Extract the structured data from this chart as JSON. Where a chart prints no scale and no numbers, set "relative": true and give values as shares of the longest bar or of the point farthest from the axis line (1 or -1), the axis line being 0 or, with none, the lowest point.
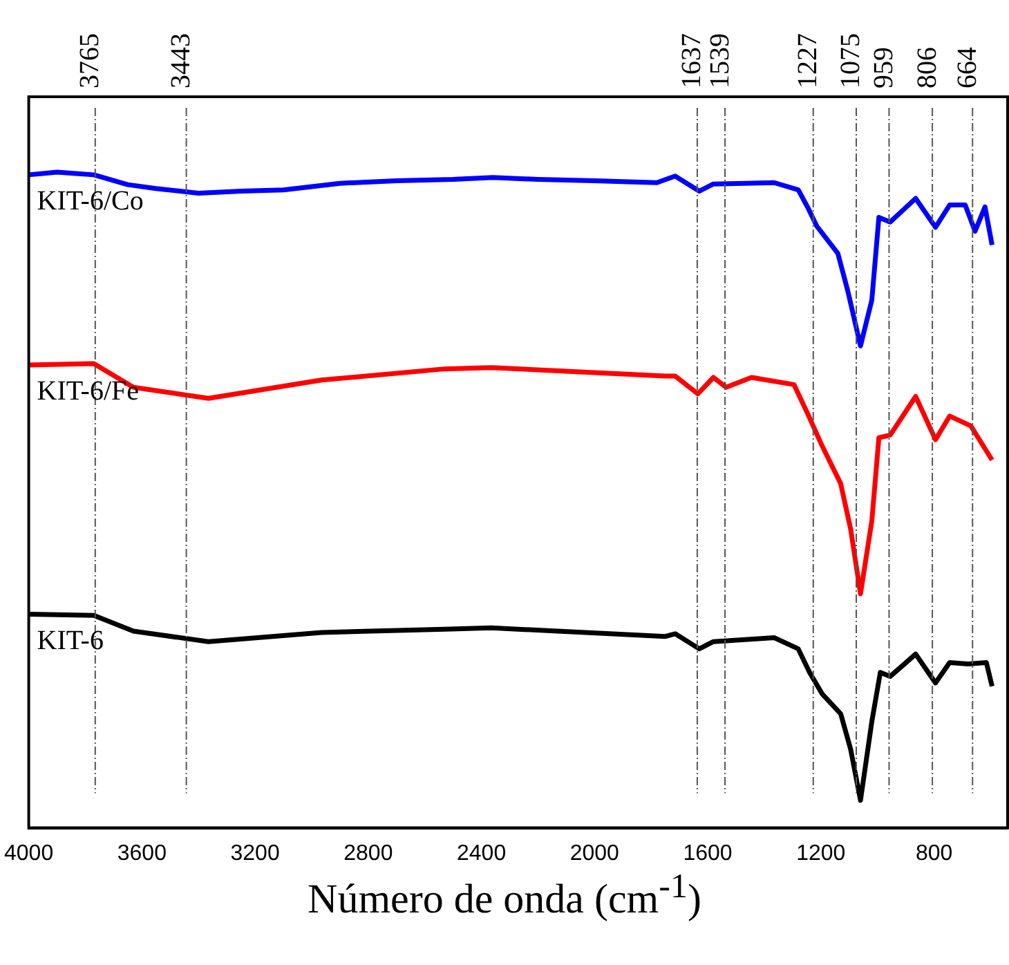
{
  "chart_data": {
    "type": "line",
    "relative": true,
    "xlabel": "Número de onda (cm$^{-1}$)",
    "xlim": [
      4000,
      540
    ],
    "xticks": [
      4000,
      3600,
      3200,
      2800,
      2400,
      2000,
      1600,
      1200,
      800
    ],
    "grid": false,
    "legend": false,
    "marker": "none",
    "line_style": "solid",
    "x": [
      4000,
      3900,
      3770,
      3650,
      3550,
      3400,
      3250,
      3100,
      2900,
      2700,
      2500,
      2360,
      2200,
      2000,
      1780,
      1715,
      1630,
      1580,
      1365,
      1280,
      1245,
      1215,
      1140,
      1105,
      1060,
      1020,
      995,
      955,
      865,
      795,
      745,
      690,
      655,
      620,
      595
    ],
    "series": [
      {
        "name": "KIT-6/Co",
        "color": "#0000ff",
        "values": [
          0.996,
          1.0,
          0.996,
          0.981,
          0.975,
          0.968,
          0.971,
          0.973,
          0.983,
          0.987,
          0.989,
          0.992,
          0.989,
          0.987,
          0.984,
          0.994,
          0.971,
          0.982,
          0.984,
          0.973,
          0.945,
          0.918,
          0.876,
          0.819,
          0.735,
          0.805,
          0.931,
          0.924,
          0.96,
          0.916,
          0.95,
          0.95,
          0.91,
          0.947,
          0.889
        ]
      },
      {
        "name": "KIT-6/Fe",
        "color": "#ff0000",
        "x": [
          4000,
          3770,
          3630,
          3365,
          2965,
          2530,
          2365,
          1750,
          1715,
          1635,
          1580,
          1535,
          1445,
          1295,
          1245,
          1195,
          1130,
          1095,
          1060,
          1020,
          995,
          955,
          865,
          795,
          745,
          670,
          595
        ],
        "values": [
          0.706,
          0.708,
          0.672,
          0.655,
          0.683,
          0.7,
          0.702,
          0.689,
          0.689,
          0.662,
          0.687,
          0.672,
          0.687,
          0.676,
          0.63,
          0.582,
          0.525,
          0.456,
          0.357,
          0.468,
          0.595,
          0.599,
          0.658,
          0.592,
          0.628,
          0.613,
          0.561
        ]
      },
      {
        "name": "KIT-6",
        "color": "#000000",
        "x": [
          4000,
          3770,
          3630,
          3365,
          2965,
          2530,
          2365,
          1750,
          1715,
          1630,
          1580,
          1365,
          1280,
          1240,
          1195,
          1130,
          1095,
          1060,
          1020,
          990,
          955,
          865,
          795,
          745,
          680,
          615,
          595
        ],
        "values": [
          0.326,
          0.324,
          0.3,
          0.284,
          0.298,
          0.303,
          0.305,
          0.292,
          0.296,
          0.273,
          0.284,
          0.29,
          0.273,
          0.237,
          0.204,
          0.174,
          0.12,
          0.042,
          0.162,
          0.237,
          0.231,
          0.265,
          0.221,
          0.252,
          0.25,
          0.252,
          0.216
        ]
      }
    ],
    "ref_lines": [
      {
        "axis": "x",
        "value": 3765,
        "label": "3765"
      },
      {
        "axis": "x",
        "value": 3443,
        "label": "3443"
      },
      {
        "axis": "x",
        "value": 1637,
        "label": "1637"
      },
      {
        "axis": "x",
        "value": 1539,
        "label": "1539"
      },
      {
        "axis": "x",
        "value": 1227,
        "label": "1227"
      },
      {
        "axis": "x",
        "value": 1075,
        "label": "1075"
      },
      {
        "axis": "x",
        "value": 959,
        "label": "959"
      },
      {
        "axis": "x",
        "value": 806,
        "label": "806"
      },
      {
        "axis": "x",
        "value": 664,
        "label": "664"
      }
    ]
  }
}
